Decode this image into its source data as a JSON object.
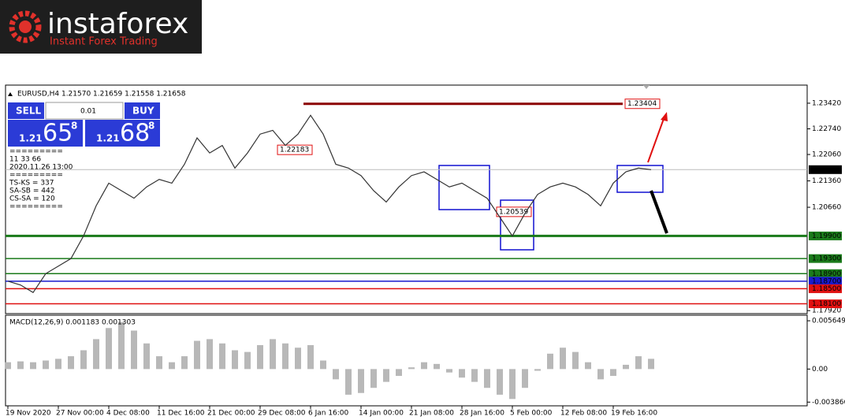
{
  "logo": {
    "name": "instaforex",
    "tagline": "Instant Forex Trading"
  },
  "trade_panel": {
    "sell": "SELL",
    "lot": "0.01",
    "buy": "BUY",
    "bid_big": "1.21",
    "bid_pips": "65",
    "bid_frac": "8",
    "ask_big": "1.21",
    "ask_pips": "68",
    "ask_frac": "8"
  },
  "info_lines": [
    "=========",
    "11 33 66",
    "2020.11.26 13:00",
    "=========",
    "TS-KS = 337",
    "SA-SB = 442",
    "CS-SA = 120",
    "========="
  ],
  "chart_data": [
    {
      "type": "line",
      "title": "EURUSD,H4  1.21570 1.21659 1.21558 1.21658",
      "categories": [
        "19 Nov 2020",
        null,
        null,
        null,
        "27 Nov 00:00",
        null,
        null,
        null,
        "4 Dec 08:00",
        null,
        null,
        null,
        "11 Dec 16:00",
        null,
        null,
        null,
        "21 Dec 00:00",
        null,
        null,
        null,
        "29 Dec 08:00",
        null,
        null,
        null,
        "6 Jan 16:00",
        null,
        null,
        null,
        "14 Jan 00:00",
        null,
        null,
        null,
        "21 Jan 08:00",
        null,
        null,
        null,
        "28 Jan 16:00",
        null,
        null,
        null,
        "5 Feb 00:00",
        null,
        null,
        null,
        "12 Feb 08:00",
        null,
        null,
        null,
        "19 Feb 16:00",
        null,
        null,
        null
      ],
      "values": [
        1.187,
        1.186,
        1.184,
        1.189,
        1.191,
        1.193,
        1.199,
        1.207,
        1.213,
        1.211,
        1.209,
        1.212,
        1.214,
        1.213,
        1.218,
        1.225,
        1.221,
        1.223,
        1.217,
        1.221,
        1.226,
        1.227,
        1.223,
        1.226,
        1.231,
        1.226,
        1.218,
        1.217,
        1.215,
        1.211,
        1.208,
        1.212,
        1.215,
        1.216,
        1.214,
        1.212,
        1.213,
        1.211,
        1.209,
        1.204,
        1.199,
        1.205,
        1.21,
        1.212,
        1.213,
        1.212,
        1.21,
        1.207,
        1.213,
        1.216,
        1.217,
        1.21658
      ],
      "color": "#333333",
      "ylim": [
        1.1784,
        1.239
      ],
      "yticks": [
        {
          "value": 1.2342,
          "label": "1.23420"
        },
        {
          "value": 1.2274,
          "label": "1.22740"
        },
        {
          "value": 1.2206,
          "label": "1.22060"
        },
        {
          "value": 1.2136,
          "label": "1.21360"
        },
        {
          "value": 1.2066,
          "label": "1.20660"
        },
        {
          "value": 1.1792,
          "label": "1.17920"
        }
      ],
      "current_price": 1.21658,
      "levels": [
        {
          "value": 1.199,
          "label": "1.19900",
          "color": "#1a7a1a"
        },
        {
          "value": 1.193,
          "label": "1.19300",
          "color": "#1a7a1a"
        },
        {
          "value": 1.189,
          "label": "1.18900",
          "color": "#1a7a1a"
        },
        {
          "value": 1.187,
          "label": "1.18700",
          "color": "#1a1acc"
        },
        {
          "value": 1.185,
          "label": "1.18500",
          "color": "#e01010"
        },
        {
          "value": 1.181,
          "label": "1.18100",
          "color": "#e01010"
        }
      ],
      "price_labels": [
        1.23404,
        1.22183,
        1.20539
      ]
    },
    {
      "type": "bar",
      "title": "MACD(12,26,9) 0.001183 0.001303",
      "values": [
        0.0008,
        0.0009,
        0.0008,
        0.001,
        0.0012,
        0.0015,
        0.0022,
        0.0035,
        0.0048,
        0.0055,
        0.0045,
        0.003,
        0.0015,
        0.0008,
        0.0015,
        0.0033,
        0.0035,
        0.003,
        0.0022,
        0.002,
        0.0028,
        0.0035,
        0.003,
        0.0025,
        0.0028,
        0.001,
        -0.0012,
        -0.003,
        -0.0028,
        -0.0022,
        -0.0015,
        -0.0008,
        0.0002,
        0.0008,
        0.0006,
        -0.0004,
        -0.001,
        -0.0015,
        -0.0022,
        -0.003,
        -0.0035,
        -0.0022,
        -0.0002,
        0.0018,
        0.0025,
        0.002,
        0.0008,
        -0.0012,
        -0.0008,
        0.0005,
        0.0015,
        0.0012
      ],
      "color": "#b8b8b8",
      "ylim": [
        -0.0043,
        0.0063
      ],
      "yticks": [
        0.005649,
        {
          "value": 0,
          "label": "0.00"
        },
        -0.003866
      ]
    }
  ]
}
